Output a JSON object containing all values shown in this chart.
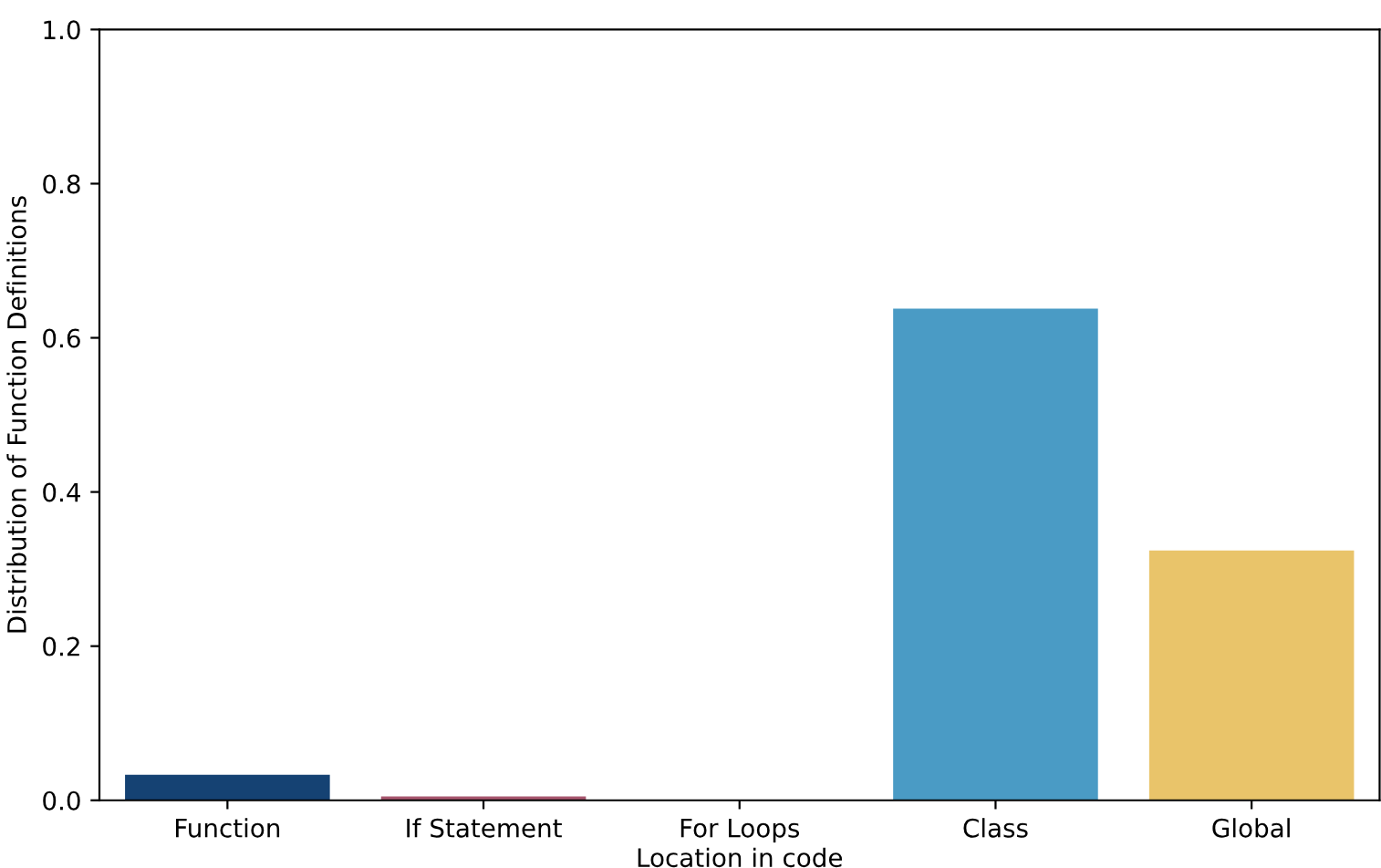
{
  "chart_data": {
    "type": "bar",
    "xlabel": "Location in code",
    "ylabel": "Distribution of Function Definitions",
    "categories": [
      "Function",
      "If Statement",
      "For Loops",
      "Class",
      "Global"
    ],
    "values": [
      0.033,
      0.005,
      0.001,
      0.638,
      0.324
    ],
    "colors": [
      "#154273",
      "#a8566e",
      "#5c3a33",
      "#4a9bc5",
      "#e9c46a"
    ],
    "ylim": [
      0,
      1.0
    ],
    "yticks": [
      {
        "value": 0,
        "label": "0.0"
      },
      0.2,
      0.4,
      0.6,
      0.8,
      {
        "value": 1,
        "label": "1.0"
      }
    ],
    "grid": false
  }
}
